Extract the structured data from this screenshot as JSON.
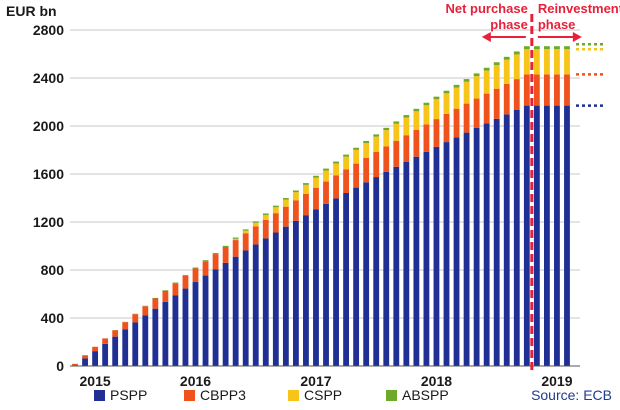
{
  "chart_data": {
    "type": "bar",
    "stacked": true,
    "unit_label": "EUR bn",
    "ylim": [
      0,
      2800
    ],
    "y_ticks": [
      "0",
      "400",
      "800",
      "1200",
      "1600",
      "2000",
      "2400",
      "2800"
    ],
    "y_tick_values": [
      0,
      400,
      800,
      1200,
      1600,
      2000,
      2400,
      2800
    ],
    "x_tick_labels": [
      "2015",
      "2016",
      "2017",
      "2018",
      "2019"
    ],
    "x_tick_bar_index": [
      2,
      12,
      24,
      36,
      48
    ],
    "grid": true,
    "series": [
      {
        "name": "PSPP",
        "color": "#1f2f94"
      },
      {
        "name": "CBPP3",
        "color": "#f0521e"
      },
      {
        "name": "CSPP",
        "color": "#f7c51a"
      },
      {
        "name": "ABSPP",
        "color": "#6eaa2a"
      }
    ],
    "n_purchase_bars": 46,
    "n_reinvest_bars": 4,
    "final_levels": {
      "PSPP": 2170,
      "CBPP3": 2430,
      "CSPP": 2640,
      "ABSPP": 2665
    },
    "phases": {
      "net_purchase": "Net purchase\nphase",
      "reinvestment": "Reinvestment\nphase"
    },
    "phase_color": "#e8203a",
    "legend_position": "bottom",
    "source": "Source: ECB"
  }
}
